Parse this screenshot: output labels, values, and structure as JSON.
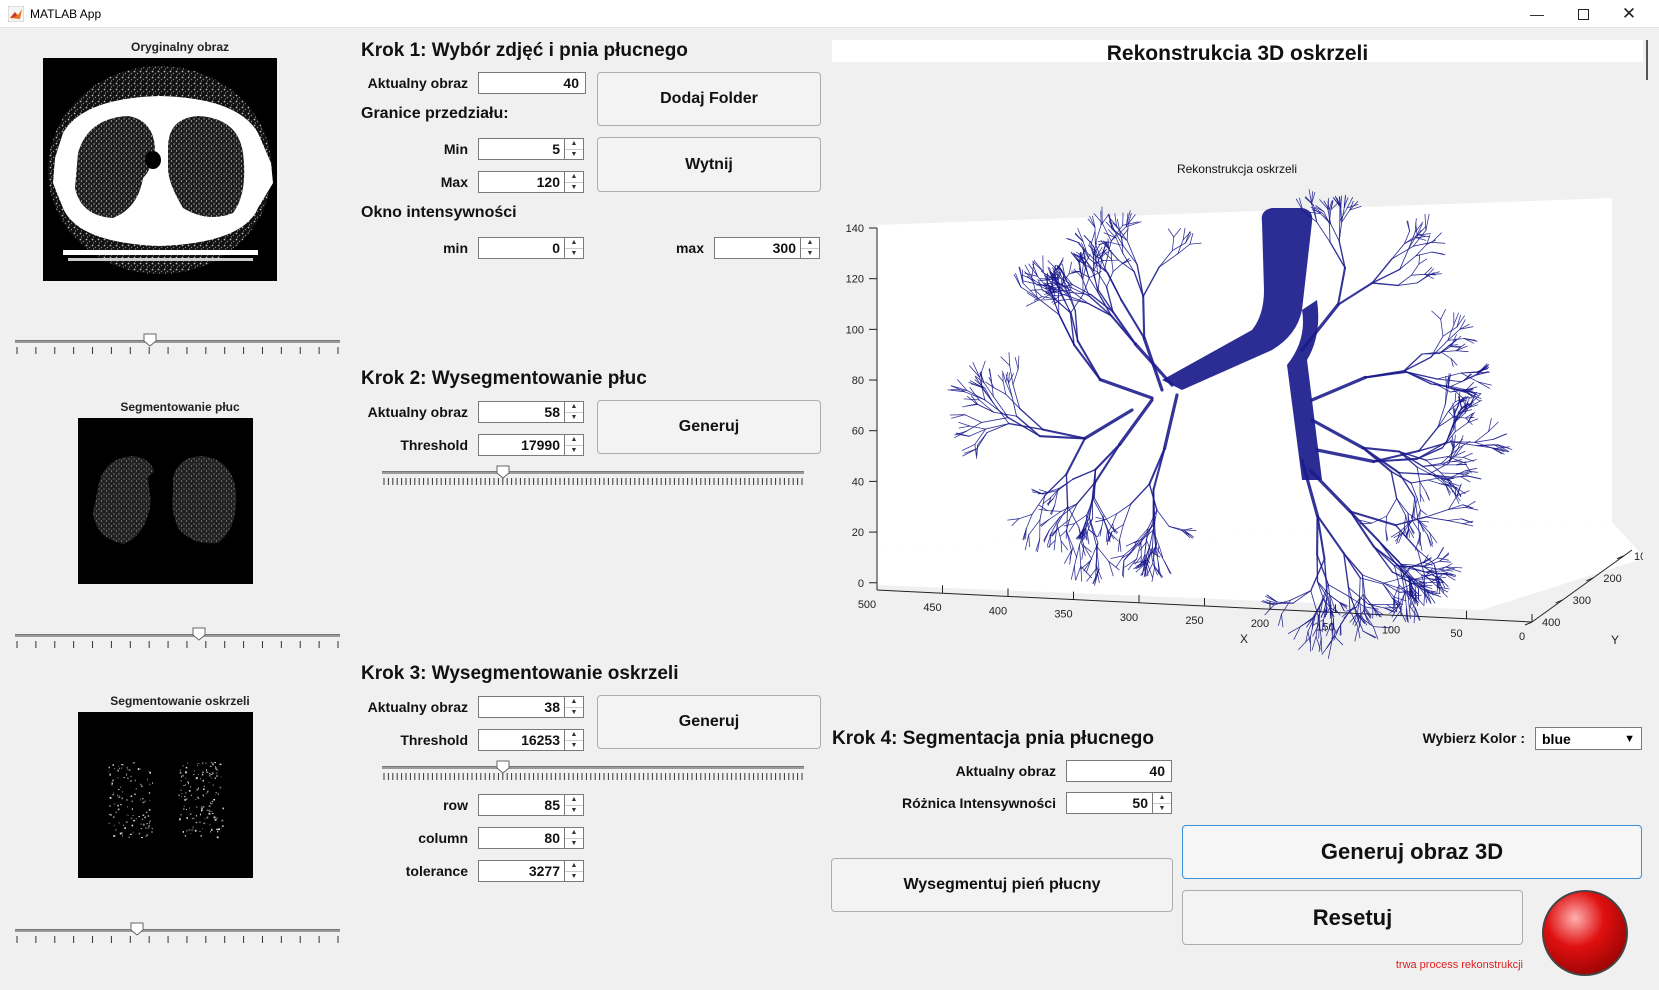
{
  "window": {
    "title": "MATLAB App"
  },
  "left": {
    "original_label": "Oryginalny obraz",
    "lungs_label": "Segmentowanie płuc",
    "bronchi_label": "Segmentowanie oskrzeli",
    "slider1_pos": 0.41,
    "slider2_pos": 0.57,
    "slider3_pos": 0.37
  },
  "step1": {
    "heading": "Krok 1: Wybór zdjęć i pnia płucnego",
    "current_label": "Aktualny obraz",
    "current_value": "40",
    "range_heading": "Granice przedziału:",
    "min_label": "Min",
    "min_value": "5",
    "max_label": "Max",
    "max_value": "120",
    "window_heading": "Okno intensywności",
    "wmin_label": "min",
    "wmin_value": "0",
    "wmax_label": "max",
    "wmax_value": "300",
    "add_folder": "Dodaj Folder",
    "cut": "Wytnij"
  },
  "step2": {
    "heading": "Krok 2: Wysegmentowanie płuc",
    "current_label": "Aktualny obraz",
    "current_value": "58",
    "threshold_label": "Threshold",
    "threshold_value": "17990",
    "generate": "Generuj",
    "slider_pos": 0.28
  },
  "step3": {
    "heading": "Krok 3: Wysegmentowanie oskrzeli",
    "current_label": "Aktualny obraz",
    "current_value": "38",
    "threshold_label": "Threshold",
    "threshold_value": "16253",
    "generate": "Generuj",
    "slider_pos": 0.28,
    "row_label": "row",
    "row_value": "85",
    "column_label": "column",
    "column_value": "80",
    "tolerance_label": "tolerance",
    "tolerance_value": "3277"
  },
  "plot": {
    "panel_title": "Rekonstrukcia 3D oskrzeli",
    "axes_title": "Rekonstrukcja oskrzeli",
    "z_ticks": [
      "140",
      "120",
      "100",
      "80",
      "60",
      "40",
      "20",
      "0"
    ],
    "x_ticks": [
      "500",
      "450",
      "400",
      "350",
      "300",
      "250",
      "200",
      "150",
      "100",
      "50",
      "0"
    ],
    "y_ticks": [
      "100",
      "200",
      "300",
      "400"
    ],
    "x_label": "X",
    "y_label": "Y",
    "color": "#1a1a8c"
  },
  "step4": {
    "heading": "Krok 4: Segmentacja pnia płucnego",
    "color_label": "Wybierz Kolor :",
    "color_value": "blue",
    "current_label": "Aktualny obraz",
    "current_value": "40",
    "diff_label": "Różnica Intensywności",
    "diff_value": "50",
    "segment_button": "Wysegmentuj pień płucny",
    "generate3d": "Generuj obraz 3D",
    "reset": "Resetuj",
    "status": "trwa process rekonstrukcji",
    "status_color": "#e02020",
    "lamp_color": "#e01010"
  }
}
